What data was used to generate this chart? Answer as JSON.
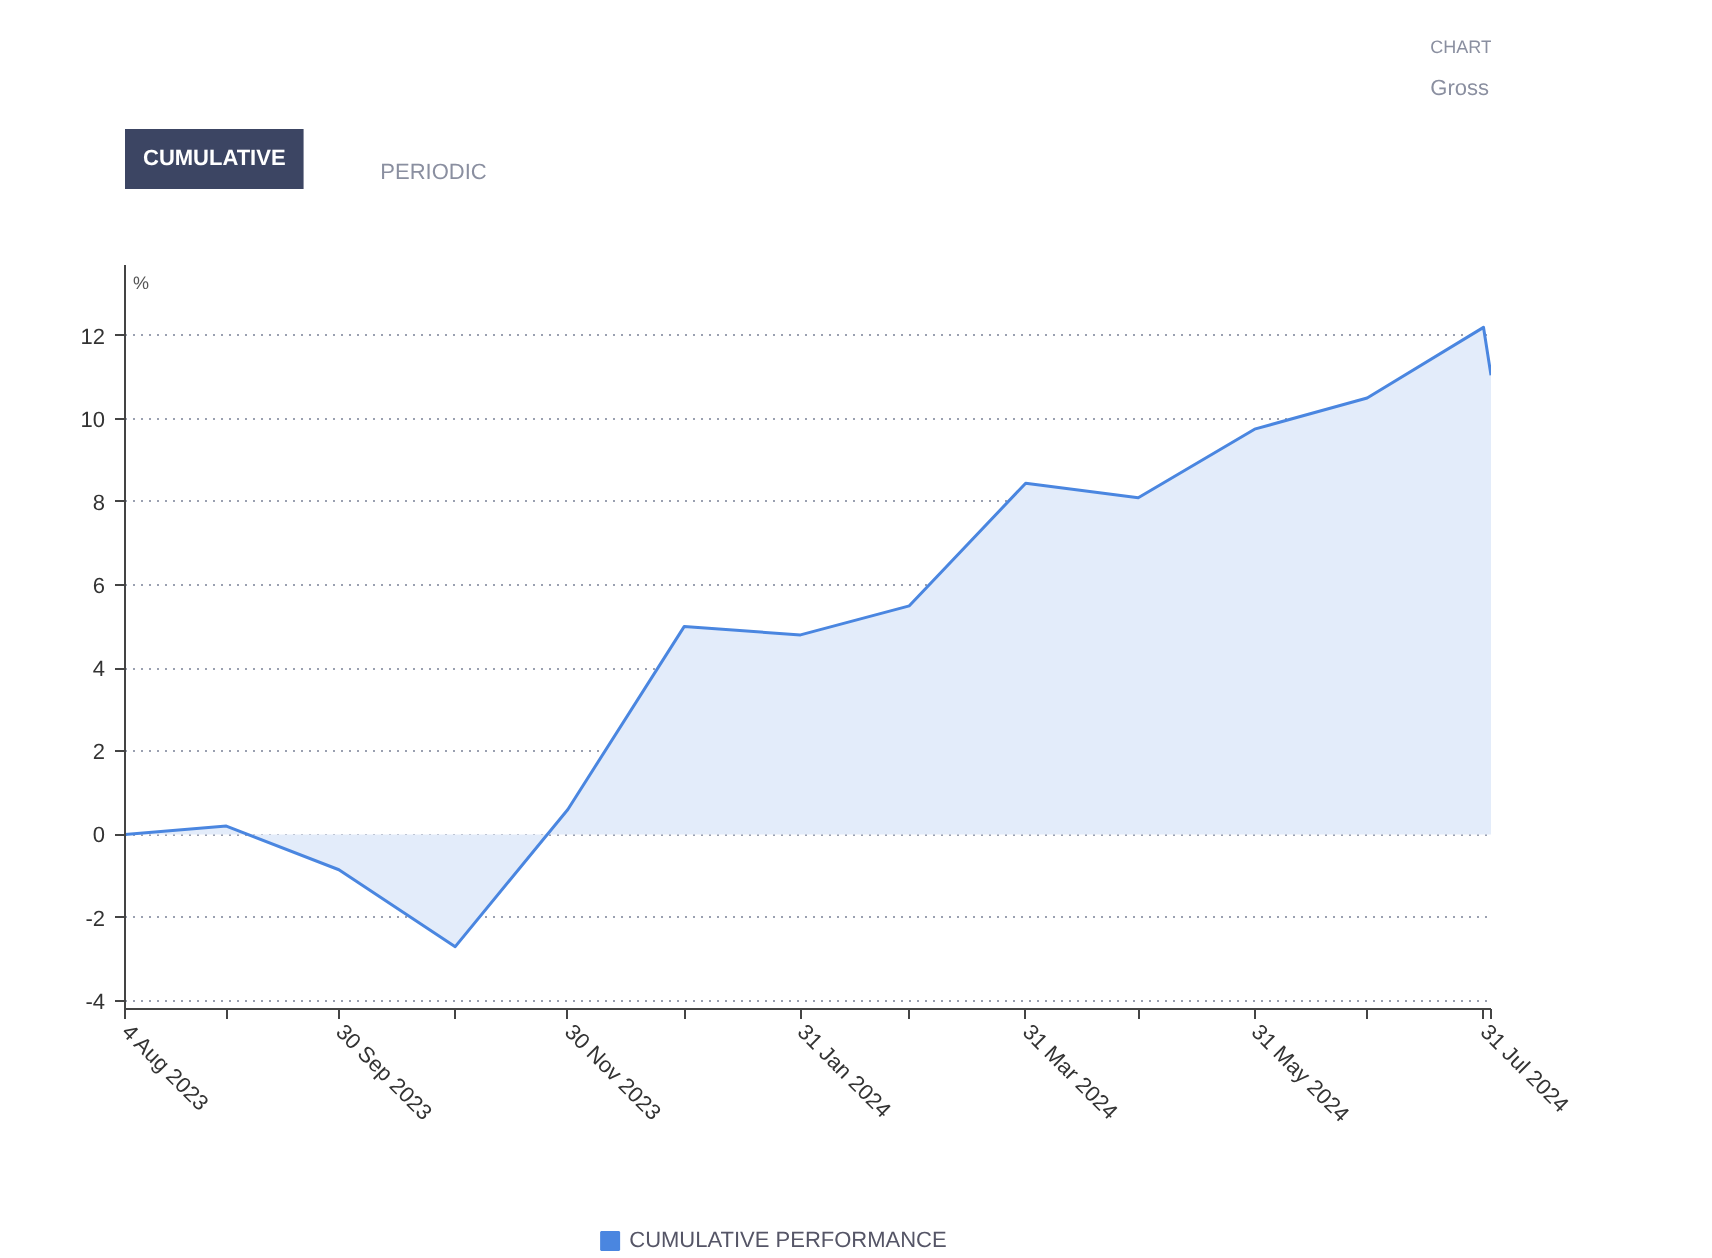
{
  "chart_data": {
    "type": "area",
    "ylabel": "%",
    "annotations": [
      "CHART",
      "Gross",
      "CUMULATIVE",
      "PERIODIC"
    ],
    "x": [
      "2023-08-04",
      "2023-08-31",
      "2023-09-30",
      "2023-10-31",
      "2023-11-30",
      "2023-12-31",
      "2024-01-31",
      "2024-02-29",
      "2024-03-31",
      "2024-04-30",
      "2024-05-31",
      "2024-06-30",
      "2024-07-31",
      "2024-08-02"
    ],
    "series": [
      {
        "name": "CUMULATIVE PERFORMANCE",
        "color": "#4a86e0",
        "values": [
          0,
          0.2,
          -0.85,
          -2.7,
          0.6,
          5.0,
          4.8,
          5.5,
          8.45,
          8.1,
          9.75,
          10.5,
          12.2,
          11.05
        ]
      }
    ],
    "xlim": [
      "2023-08-04",
      "2024-08-02"
    ],
    "xticks": [
      {
        "value": "2023-08-04",
        "label": "4 Aug 2023"
      },
      {
        "value": "2023-08-31",
        "label": null
      },
      {
        "value": "2023-09-30",
        "label": "30 Sep 2023"
      },
      {
        "value": "2023-10-31",
        "label": null
      },
      {
        "value": "2023-11-30",
        "label": "30 Nov 2023"
      },
      {
        "value": "2023-12-31",
        "label": null
      },
      {
        "value": "2024-01-31",
        "label": "31 Jan 2024"
      },
      {
        "value": "2024-02-29",
        "label": null
      },
      {
        "value": "2024-03-31",
        "label": "31 Mar 2024"
      },
      {
        "value": "2024-04-30",
        "label": null
      },
      {
        "value": "2024-05-31",
        "label": "31 May 2024"
      },
      {
        "value": "2024-06-30",
        "label": null
      },
      {
        "value": "2024-07-31",
        "label": "31 Jul 2024"
      },
      {
        "value": "2024-08-02",
        "label": null
      }
    ],
    "ylim": [
      -4.2,
      13.7
    ],
    "yticks": [
      -4,
      -2,
      0,
      2,
      4,
      6,
      8,
      10,
      12
    ],
    "grid": "y",
    "legend": "bottom",
    "line_style": "solid",
    "marker": "none"
  }
}
